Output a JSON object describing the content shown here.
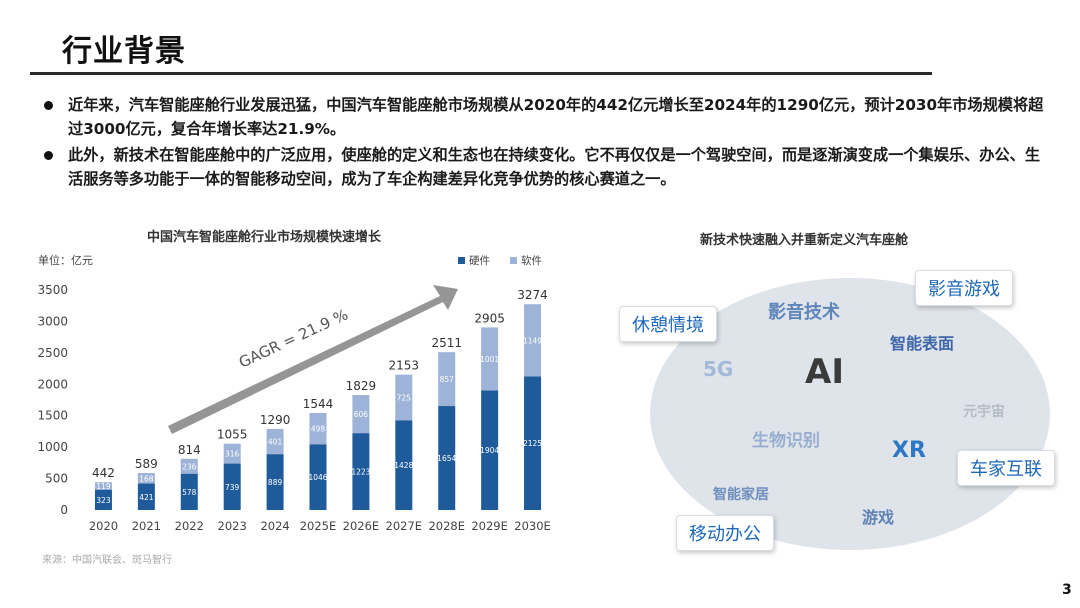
{
  "slide": {
    "title": "行业背景",
    "page_number": "3",
    "bullets": [
      "近年来，汽车智能座舱行业发展迅猛，中国汽车智能座舱市场规模从2020年的442亿元增长至2024年的1290亿元，预计2030年市场规模将超过3000亿元，复合年增长率达21.9%。",
      "此外，新技术在智能座舱中的广泛应用，使座舱的定义和生态也在持续变化。它不再仅仅是一个驾驶空间，而是逐渐演变成一个集娱乐、办公、生活服务等多功能于一体的智能移动空间，成为了车企构建差异化竞争优势的核心赛道之一。"
    ],
    "source": "来源：中国汽联会、斑马智行"
  },
  "chart_data": {
    "type": "bar",
    "stacked": true,
    "title": "中国汽车智能座舱行业市场规模快速增长",
    "unit_label": "单位：亿元",
    "categories": [
      "2020",
      "2021",
      "2022",
      "2023",
      "2024",
      "2025E",
      "2026E",
      "2027E",
      "2028E",
      "2029E",
      "2030E"
    ],
    "series": [
      {
        "name": "硬件",
        "color": "#1f5b9b",
        "values": [
          323,
          421,
          578,
          739,
          889,
          1046,
          1223,
          1428,
          1654,
          1904,
          2125
        ]
      },
      {
        "name": "软件",
        "color": "#9db3d8",
        "values": [
          119,
          168,
          236,
          316,
          401,
          498,
          606,
          725,
          857,
          1001,
          1149
        ]
      }
    ],
    "totals": [
      442,
      589,
      814,
      1055,
      1290,
      1544,
      1829,
      2153,
      2511,
      2905,
      3274
    ],
    "ylim": [
      0,
      3500
    ],
    "yticks": [
      0,
      500,
      1000,
      1500,
      2000,
      2500,
      3000,
      3500
    ],
    "legend_position": "top-right",
    "annotation": "GAGR = 21.9 %",
    "grid": false
  },
  "cloud": {
    "title": "新技术快速融入并重新定义汽车座舱",
    "words": [
      {
        "text": "AI",
        "color": "#3a3a3a"
      },
      {
        "text": "影音技术",
        "color": "#5f86b8"
      },
      {
        "text": "智能表面",
        "color": "#3e66a8"
      },
      {
        "text": "5G",
        "color": "#a3b9d8"
      },
      {
        "text": "元宇宙",
        "color": "#b4bcc6"
      },
      {
        "text": "生物识别",
        "color": "#97aed0"
      },
      {
        "text": "XR",
        "color": "#2d78c4"
      },
      {
        "text": "智能家居",
        "color": "#6f8fbd"
      },
      {
        "text": "游戏",
        "color": "#5f83b5"
      }
    ],
    "boxes": [
      "休憩情境",
      "影音游戏",
      "车家互联",
      "移动办公"
    ]
  }
}
